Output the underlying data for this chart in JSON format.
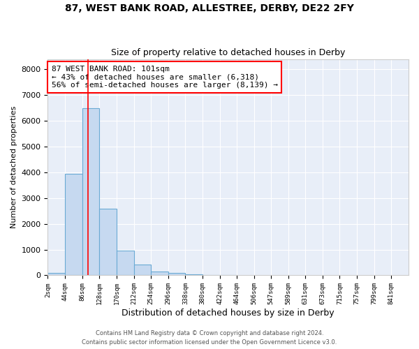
{
  "title1": "87, WEST BANK ROAD, ALLESTREE, DERBY, DE22 2FY",
  "title2": "Size of property relative to detached houses in Derby",
  "xlabel": "Distribution of detached houses by size in Derby",
  "ylabel": "Number of detached properties",
  "bar_color": "#c6d9f0",
  "bar_edge_color": "#6aaad4",
  "background_color": "#e8eef8",
  "bins": [
    2,
    44,
    86,
    128,
    170,
    212,
    254,
    296,
    338,
    380,
    422,
    464,
    506,
    547,
    589,
    631,
    673,
    715,
    757,
    799,
    841
  ],
  "bin_labels": [
    "2sqm",
    "44sqm",
    "86sqm",
    "128sqm",
    "170sqm",
    "212sqm",
    "254sqm",
    "296sqm",
    "338sqm",
    "380sqm",
    "422sqm",
    "464sqm",
    "506sqm",
    "547sqm",
    "589sqm",
    "631sqm",
    "673sqm",
    "715sqm",
    "757sqm",
    "799sqm",
    "841sqm"
  ],
  "counts": [
    90,
    3950,
    6480,
    2580,
    950,
    430,
    145,
    100,
    50,
    10,
    5,
    0,
    0,
    0,
    0,
    0,
    0,
    0,
    0,
    0
  ],
  "property_size": 101,
  "annotation_line1": "87 WEST BANK ROAD: 101sqm",
  "annotation_line2": "← 43% of detached houses are smaller (6,318)",
  "annotation_line3": "56% of semi-detached houses are larger (8,139) →",
  "annotation_box_color": "white",
  "annotation_border_color": "red",
  "vline_color": "red",
  "ylim": [
    0,
    8400
  ],
  "yticks": [
    0,
    1000,
    2000,
    3000,
    4000,
    5000,
    6000,
    7000,
    8000
  ],
  "footer1": "Contains HM Land Registry data © Crown copyright and database right 2024.",
  "footer2": "Contains public sector information licensed under the Open Government Licence v3.0."
}
